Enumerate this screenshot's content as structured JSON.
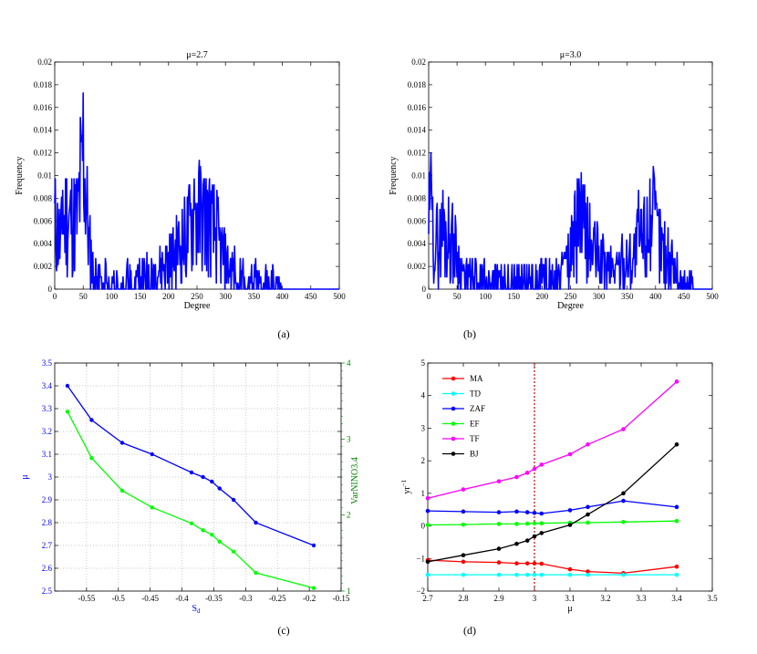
{
  "chart_data": [
    {
      "id": "a",
      "type": "line",
      "title": "μ=2.7",
      "xlabel": "Degree",
      "ylabel": "Frequency",
      "xlim": [
        0,
        500
      ],
      "ylim": [
        0,
        0.02
      ],
      "xticks": [
        "0",
        "50",
        "100",
        "150",
        "200",
        "250",
        "300",
        "350",
        "400",
        "450",
        "500"
      ],
      "yticks": [
        "0",
        "0.002",
        "0.004",
        "0.006",
        "0.008",
        "0.01",
        "0.012",
        "0.014",
        "0.016",
        "0.018",
        "0.02"
      ],
      "color": "#0000ff",
      "profile": [
        [
          0,
          0.006
        ],
        [
          10,
          0.004
        ],
        [
          20,
          0.0065
        ],
        [
          30,
          0.006
        ],
        [
          40,
          0.006
        ],
        [
          50,
          0.0125
        ],
        [
          60,
          0.004
        ],
        [
          70,
          0.001
        ],
        [
          90,
          0.001
        ],
        [
          110,
          0.0005
        ],
        [
          130,
          0.001
        ],
        [
          150,
          0.001
        ],
        [
          170,
          0.0015
        ],
        [
          190,
          0.002
        ],
        [
          210,
          0.003
        ],
        [
          230,
          0.0045
        ],
        [
          250,
          0.0065
        ],
        [
          265,
          0.0065
        ],
        [
          280,
          0.005
        ],
        [
          295,
          0.003
        ],
        [
          305,
          0.002
        ],
        [
          320,
          0.0015
        ],
        [
          340,
          0.001
        ],
        [
          360,
          0.001
        ],
        [
          380,
          0.0007
        ],
        [
          393,
          0.0005
        ],
        [
          400,
          0
        ]
      ],
      "peaks": [
        [
          47,
          0.013
        ],
        [
          14,
          0.0087
        ],
        [
          28,
          0.0087
        ],
        [
          245,
          0.0097
        ],
        [
          268,
          0.0087
        ],
        [
          285,
          0.0087
        ]
      ],
      "seed": 11,
      "caption": "(a)"
    },
    {
      "id": "b",
      "type": "line",
      "title": "μ=3.0",
      "xlabel": "Degree",
      "ylabel": "Frequency",
      "xlim": [
        0,
        500
      ],
      "ylim": [
        0,
        0.02
      ],
      "xticks": [
        "0",
        "50",
        "100",
        "150",
        "200",
        "250",
        "300",
        "350",
        "400",
        "450",
        "500"
      ],
      "yticks": [
        "0",
        "0.002",
        "0.004",
        "0.006",
        "0.008",
        "0.01",
        "0.012",
        "0.014",
        "0.016",
        "0.018",
        "0.02"
      ],
      "color": "#0000ff",
      "profile": [
        [
          0,
          0.006
        ],
        [
          15,
          0.004
        ],
        [
          30,
          0.005
        ],
        [
          45,
          0.004
        ],
        [
          55,
          0.002
        ],
        [
          70,
          0.001
        ],
        [
          100,
          0.001
        ],
        [
          130,
          0.0007
        ],
        [
          170,
          0.001
        ],
        [
          210,
          0.001
        ],
        [
          245,
          0.002
        ],
        [
          265,
          0.006
        ],
        [
          285,
          0.004
        ],
        [
          310,
          0.002
        ],
        [
          335,
          0.002
        ],
        [
          360,
          0.003
        ],
        [
          380,
          0.005
        ],
        [
          395,
          0.006
        ],
        [
          410,
          0.004
        ],
        [
          430,
          0.002
        ],
        [
          450,
          0.001
        ],
        [
          463,
          0.0005
        ],
        [
          470,
          0
        ]
      ],
      "peaks": [
        [
          4,
          0.012
        ],
        [
          25,
          0.0087
        ],
        [
          265,
          0.0097
        ],
        [
          390,
          0.0097
        ],
        [
          370,
          0.0087
        ]
      ],
      "seed": 29,
      "caption": "(b)"
    },
    {
      "id": "c",
      "type": "line",
      "title": "",
      "xlabel": "S_d",
      "ylabel": "μ",
      "ylabel_right": "VarNINO3.4",
      "xlim": [
        -0.6,
        -0.15
      ],
      "ylim": [
        2.5,
        3.5
      ],
      "ylim_right": [
        1,
        4
      ],
      "grid": true,
      "xticks": [
        "-0.55",
        "-0.5",
        "-0.45",
        "-0.4",
        "-0.35",
        "-0.3",
        "-0.25",
        "-0.2",
        "-0.15"
      ],
      "yticks": [
        "2.5",
        "2.6",
        "2.7",
        "2.8",
        "2.9",
        "3",
        "3.1",
        "3.2",
        "3.3",
        "3.4",
        "3.5"
      ],
      "yticks_right": [
        "1",
        "2",
        "3",
        "4"
      ],
      "x": [
        -0.58,
        -0.542,
        -0.494,
        -0.447,
        -0.385,
        -0.367,
        -0.353,
        -0.341,
        -0.319,
        -0.284,
        -0.193
      ],
      "series": [
        {
          "values": [
            3.4,
            3.25,
            3.15,
            3.1,
            3.02,
            3.0,
            2.98,
            2.95,
            2.9,
            2.8,
            2.7
          ],
          "axis": "left",
          "color": "#0000ff"
        },
        {
          "values": [
            3.36,
            2.75,
            2.32,
            2.1,
            1.89,
            1.8,
            1.74,
            1.65,
            1.52,
            1.24,
            1.04
          ],
          "axis": "right",
          "color": "#00ff00"
        }
      ],
      "caption": "(c)"
    },
    {
      "id": "d",
      "type": "line",
      "title": "",
      "xlabel": "μ",
      "ylabel": "yr",
      "ylabel_sup": "−1",
      "xlim": [
        2.7,
        3.5
      ],
      "ylim": [
        -2,
        5
      ],
      "xticks": [
        "2.7",
        "2.8",
        "2.9",
        "3",
        "3.1",
        "3.2",
        "3.3",
        "3.4",
        "3.5"
      ],
      "yticks": [
        "−2",
        "−1",
        "0",
        "1",
        "2",
        "3",
        "4",
        "5"
      ],
      "x": [
        2.7,
        2.8,
        2.9,
        2.95,
        2.98,
        3.0,
        3.02,
        3.1,
        3.15,
        3.25,
        3.4
      ],
      "vline": 3.0,
      "legend_position": "top-left",
      "series": [
        {
          "name": "MA",
          "color": "#ff0000",
          "values": [
            -1.05,
            -1.1,
            -1.12,
            -1.15,
            -1.15,
            -1.15,
            -1.16,
            -1.33,
            -1.4,
            -1.45,
            -1.25
          ]
        },
        {
          "name": "TD",
          "color": "#00ffff",
          "values": [
            -1.5,
            -1.5,
            -1.5,
            -1.5,
            -1.5,
            -1.5,
            -1.5,
            -1.5,
            -1.5,
            -1.5,
            -1.5
          ]
        },
        {
          "name": "ZAF",
          "color": "#0000ff",
          "values": [
            0.46,
            0.44,
            0.42,
            0.44,
            0.42,
            0.4,
            0.38,
            0.48,
            0.58,
            0.77,
            0.58
          ]
        },
        {
          "name": "EF",
          "color": "#00ff00",
          "values": [
            0.03,
            0.04,
            0.06,
            0.06,
            0.07,
            0.08,
            0.08,
            0.1,
            0.1,
            0.12,
            0.15
          ]
        },
        {
          "name": "TF",
          "color": "#ff00ff",
          "values": [
            0.85,
            1.12,
            1.37,
            1.5,
            1.63,
            1.75,
            1.88,
            2.2,
            2.5,
            2.97,
            4.43
          ]
        },
        {
          "name": "BJ",
          "color": "#000000",
          "values": [
            -1.1,
            -0.9,
            -0.7,
            -0.55,
            -0.45,
            -0.32,
            -0.22,
            0.03,
            0.35,
            1.0,
            2.5
          ]
        }
      ],
      "caption": "(d)"
    }
  ]
}
